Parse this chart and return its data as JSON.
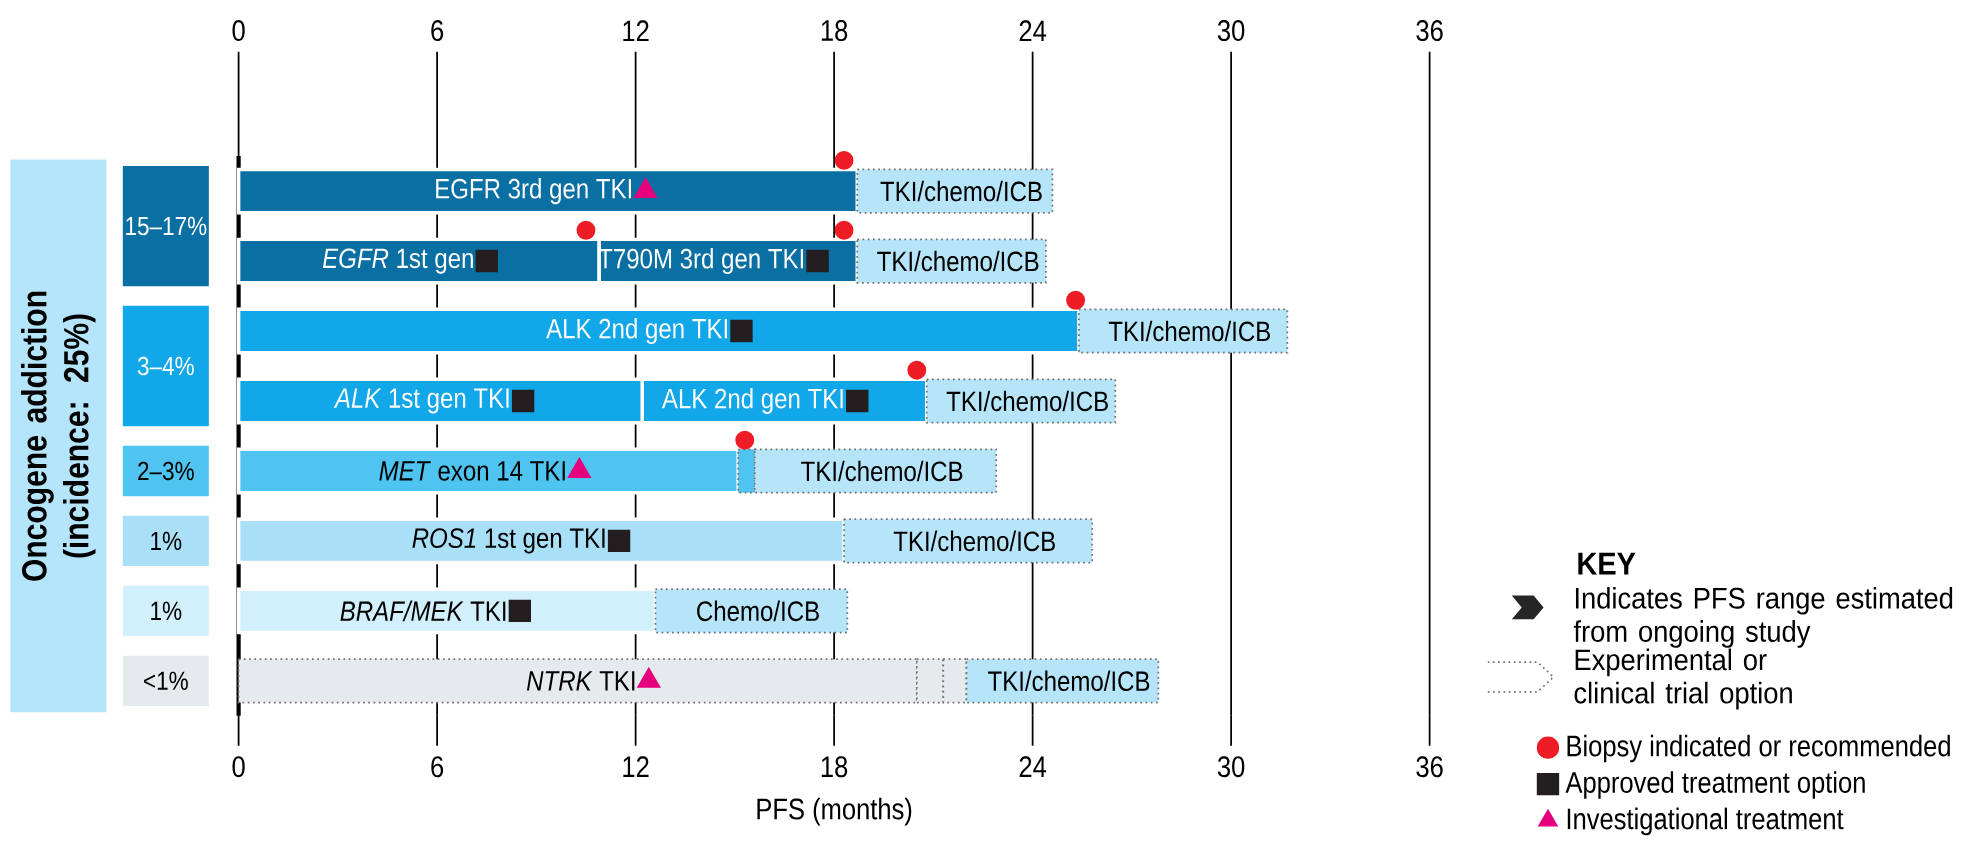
{
  "chart_data": {
    "type": "bar",
    "orientation": "horizontal",
    "xlabel": "PFS (months)",
    "ylabel": "Oncogene addiction (incidence: 25%)",
    "xlim": [
      0,
      36
    ],
    "xticks": [
      0,
      6,
      12,
      18,
      24,
      30,
      36
    ],
    "x2lim": [
      0,
      36
    ],
    "x2ticks": [
      0,
      6,
      12,
      18,
      24,
      30,
      36
    ],
    "grid": "x",
    "legend": "bottom right",
    "legend_title": "KEY",
    "categories": [
      null,
      null,
      null,
      null,
      null,
      null,
      null,
      null
    ],
    "annotations": [
      "15–17%",
      "3–4%",
      "2–3%",
      "1%",
      "1%",
      "<1%",
      "Indicates PFS range estimated from ongoing study",
      "Experimental or clinical trial option"
    ],
    "series": [
      {
        "name": "EGFR 3rd gen TKI",
        "color": "#0a6fa2",
        "values": [
          18.7,
          null,
          null,
          null,
          null,
          null,
          null,
          null
        ],
        "base": [
          0,
          null,
          null,
          null,
          null,
          null,
          null,
          null
        ]
      },
      {
        "name": "*EGFR* 1st gen",
        "color": "#0a6fa2",
        "values": [
          null,
          10.9,
          null,
          null,
          null,
          null,
          null,
          null
        ],
        "base": [
          null,
          0,
          null,
          null,
          null,
          null,
          null,
          null
        ]
      },
      {
        "name": "T790M 3rd gen TKI",
        "color": "#0a6fa2",
        "values": [
          null,
          7.8,
          null,
          null,
          null,
          null,
          null,
          null
        ],
        "base": [
          null,
          10.9,
          null,
          null,
          null,
          null,
          null,
          null
        ]
      },
      {
        "name": "ALK 2nd gen TKI",
        "color": "#12a7e9",
        "values": [
          null,
          null,
          25.4,
          8.6,
          null,
          null,
          null,
          null
        ],
        "base": [
          null,
          null,
          0,
          12.2,
          null,
          null,
          null,
          null
        ]
      },
      {
        "name": "*ALK* 1st gen TKI",
        "color": "#12a7e9",
        "values": [
          null,
          null,
          null,
          12.2,
          null,
          null,
          null,
          null
        ],
        "base": [
          null,
          null,
          null,
          0,
          null,
          null,
          null,
          null
        ]
      },
      {
        "name": "*MET* exon 14 TKI",
        "color": "#4fc4f0",
        "values": [
          null,
          null,
          null,
          null,
          15.1,
          null,
          null,
          null
        ],
        "base": [
          null,
          null,
          null,
          null,
          0,
          null,
          null,
          null
        ]
      },
      {
        "name": "*ROS1* 1st gen TKI",
        "color": "#a9e0f8",
        "values": [
          null,
          null,
          null,
          null,
          null,
          18.3,
          null,
          null
        ],
        "base": [
          null,
          null,
          null,
          null,
          null,
          0,
          null,
          null
        ]
      },
      {
        "name": "*BRAF/MEK* TKI",
        "color": "#d2effc",
        "values": [
          null,
          null,
          null,
          null,
          null,
          null,
          12.6,
          null
        ],
        "base": [
          null,
          null,
          null,
          null,
          null,
          null,
          0,
          null
        ]
      },
      {
        "name": "*NTRK* TKI",
        "color": "#e5eaec",
        "line_style": "dotted",
        "values": [
          null,
          null,
          null,
          null,
          null,
          null,
          null,
          20.5
        ],
        "base": [
          null,
          null,
          null,
          null,
          null,
          null,
          null,
          0
        ]
      },
      {
        "colors": [
          null,
          null,
          null,
          null,
          "#4fc4f0",
          null,
          null,
          "#e5eaec"
        ],
        "line_style": "dotted",
        "values": [
          null,
          null,
          null,
          null,
          0.5,
          null,
          null,
          0.8
        ],
        "base": [
          null,
          null,
          null,
          null,
          15.1,
          null,
          null,
          20.5
        ]
      },
      {
        "color": "#e5eaec",
        "line_style": "dotted",
        "values": [
          null,
          null,
          null,
          null,
          null,
          null,
          null,
          0.7
        ],
        "base": [
          null,
          null,
          null,
          null,
          null,
          null,
          null,
          21.3
        ]
      },
      {
        "name": "Chemo/ICB",
        "color": "#b6e4f9",
        "line_style": "dotted",
        "values": [
          null,
          null,
          null,
          null,
          null,
          null,
          5.8,
          null
        ],
        "base": [
          null,
          null,
          null,
          null,
          null,
          null,
          12.6,
          null
        ]
      },
      {
        "name": "TKI/chemo/ICB",
        "color": "#b6e4f9",
        "line_style": "dotted",
        "values": [
          5.9,
          5.7,
          6.3,
          5.7,
          7.3,
          7.5,
          null,
          5.8
        ],
        "base": [
          18.7,
          18.7,
          25.4,
          20.8,
          15.6,
          18.3,
          null,
          22.0
        ]
      },
      {
        "type": "scatter",
        "name": "Biopsy indicated or recommended",
        "color": "#ee1c25",
        "marker": "circle",
        "values": [
          18.3,
          18.3,
          25.3,
          20.5,
          15.3,
          null,
          null,
          null
        ]
      },
      {
        "type": "scatter",
        "color": "#ee1c25",
        "marker": "circle",
        "values": [
          null,
          10.5,
          null,
          null,
          null,
          null,
          null,
          null
        ]
      },
      {
        "type": "scatter",
        "name": "Approved treatment option",
        "color": "#231f20",
        "marker": "square",
        "values": [
          null,
          7.5,
          15.2,
          8.6,
          null,
          11.5,
          8.5,
          null
        ]
      },
      {
        "type": "scatter",
        "color": "#231f20",
        "marker": "square",
        "values": [
          null,
          17.5,
          null,
          18.7,
          null,
          null,
          null,
          null
        ]
      },
      {
        "type": "scatter",
        "name": "Investigational treatment",
        "color": "#e6007e",
        "marker": "triangle",
        "values": [
          12.3,
          null,
          null,
          null,
          10.3,
          null,
          null,
          12.4
        ]
      }
    ]
  }
}
